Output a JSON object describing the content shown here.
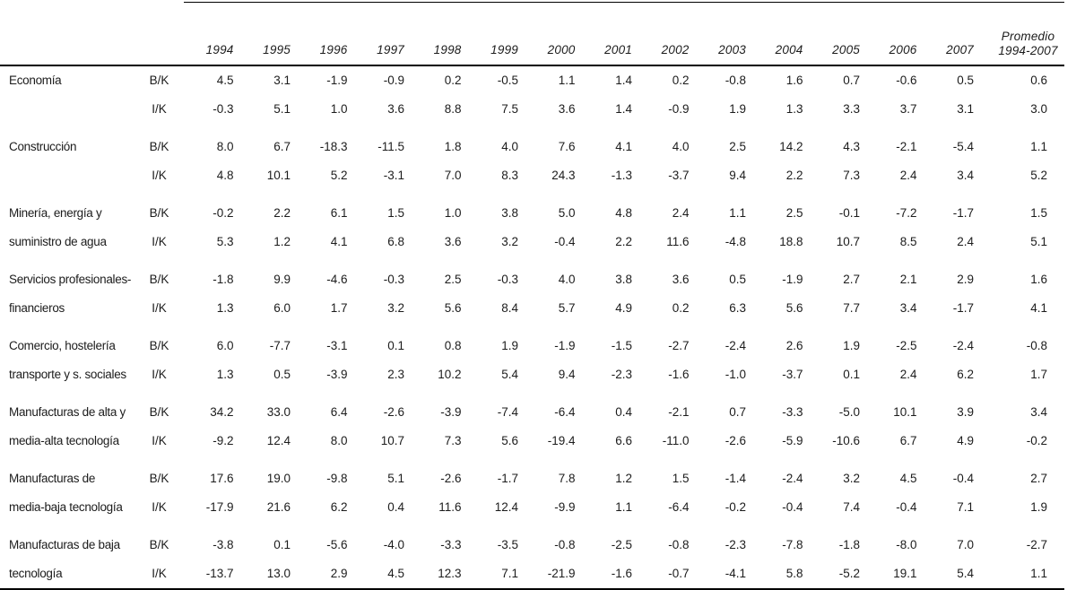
{
  "table": {
    "year_headers": [
      "1994",
      "1995",
      "1996",
      "1997",
      "1998",
      "1999",
      "2000",
      "2001",
      "2002",
      "2003",
      "2004",
      "2005",
      "2006",
      "2007"
    ],
    "promedio_header": "Promedio\n1994-2007",
    "groups": [
      {
        "sector": "Economía",
        "rows": [
          {
            "label": "B/K",
            "values": [
              "4.5",
              "3.1",
              "-1.9",
              "-0.9",
              "0.2",
              "-0.5",
              "1.1",
              "1.4",
              "0.2",
              "-0.8",
              "1.6",
              "0.7",
              "-0.6",
              "0.5",
              "0.6"
            ]
          },
          {
            "label": "I/K",
            "values": [
              "-0.3",
              "5.1",
              "1.0",
              "3.6",
              "8.8",
              "7.5",
              "3.6",
              "1.4",
              "-0.9",
              "1.9",
              "1.3",
              "3.3",
              "3.7",
              "3.1",
              "3.0"
            ]
          }
        ]
      },
      {
        "sector": "Construcción",
        "rows": [
          {
            "label": "B/K",
            "values": [
              "8.0",
              "6.7",
              "-18.3",
              "-11.5",
              "1.8",
              "4.0",
              "7.6",
              "4.1",
              "4.0",
              "2.5",
              "14.2",
              "4.3",
              "-2.1",
              "-5.4",
              "1.1"
            ]
          },
          {
            "label": "I/K",
            "values": [
              "4.8",
              "10.1",
              "5.2",
              "-3.1",
              "7.0",
              "8.3",
              "24.3",
              "-1.3",
              "-3.7",
              "9.4",
              "2.2",
              "7.3",
              "2.4",
              "3.4",
              "5.2"
            ]
          }
        ]
      },
      {
        "sector": "Minería, energía y\nsuministro de agua",
        "rows": [
          {
            "label": "B/K",
            "values": [
              "-0.2",
              "2.2",
              "6.1",
              "1.5",
              "1.0",
              "3.8",
              "5.0",
              "4.8",
              "2.4",
              "1.1",
              "2.5",
              "-0.1",
              "-7.2",
              "-1.7",
              "1.5"
            ]
          },
          {
            "label": "I/K",
            "values": [
              "5.3",
              "1.2",
              "4.1",
              "6.8",
              "3.6",
              "3.2",
              "-0.4",
              "2.2",
              "11.6",
              "-4.8",
              "18.8",
              "10.7",
              "8.5",
              "2.4",
              "5.1"
            ]
          }
        ]
      },
      {
        "sector": "Servicios profesionales-\nfinancieros",
        "rows": [
          {
            "label": "B/K",
            "values": [
              "-1.8",
              "9.9",
              "-4.6",
              "-0.3",
              "2.5",
              "-0.3",
              "4.0",
              "3.8",
              "3.6",
              "0.5",
              "-1.9",
              "2.7",
              "2.1",
              "2.9",
              "1.6"
            ]
          },
          {
            "label": "I/K",
            "values": [
              "1.3",
              "6.0",
              "1.7",
              "3.2",
              "5.6",
              "8.4",
              "5.7",
              "4.9",
              "0.2",
              "6.3",
              "5.6",
              "7.7",
              "3.4",
              "-1.7",
              "4.1"
            ]
          }
        ]
      },
      {
        "sector": "Comercio, hostelería\ntransporte y s. sociales",
        "rows": [
          {
            "label": "B/K",
            "values": [
              "6.0",
              "-7.7",
              "-3.1",
              "0.1",
              "0.8",
              "1.9",
              "-1.9",
              "-1.5",
              "-2.7",
              "-2.4",
              "2.6",
              "1.9",
              "-2.5",
              "-2.4",
              "-0.8"
            ]
          },
          {
            "label": "I/K",
            "values": [
              "1.3",
              "0.5",
              "-3.9",
              "2.3",
              "10.2",
              "5.4",
              "9.4",
              "-2.3",
              "-1.6",
              "-1.0",
              "-3.7",
              "0.1",
              "2.4",
              "6.2",
              "1.7"
            ]
          }
        ]
      },
      {
        "sector": "Manufacturas de alta y\nmedia-alta tecnología",
        "rows": [
          {
            "label": "B/K",
            "values": [
              "34.2",
              "33.0",
              "6.4",
              "-2.6",
              "-3.9",
              "-7.4",
              "-6.4",
              "0.4",
              "-2.1",
              "0.7",
              "-3.3",
              "-5.0",
              "10.1",
              "3.9",
              "3.4"
            ]
          },
          {
            "label": "I/K",
            "values": [
              "-9.2",
              "12.4",
              "8.0",
              "10.7",
              "7.3",
              "5.6",
              "-19.4",
              "6.6",
              "-11.0",
              "-2.6",
              "-5.9",
              "-10.6",
              "6.7",
              "4.9",
              "-0.2"
            ]
          }
        ]
      },
      {
        "sector": "Manufacturas de\nmedia-baja tecnología",
        "rows": [
          {
            "label": "B/K",
            "values": [
              "17.6",
              "19.0",
              "-9.8",
              "5.1",
              "-2.6",
              "-1.7",
              "7.8",
              "1.2",
              "1.5",
              "-1.4",
              "-2.4",
              "3.2",
              "4.5",
              "-0.4",
              "2.7"
            ]
          },
          {
            "label": "I/K",
            "values": [
              "-17.9",
              "21.6",
              "6.2",
              "0.4",
              "11.6",
              "12.4",
              "-9.9",
              "1.1",
              "-6.4",
              "-0.2",
              "-0.4",
              "7.4",
              "-0.4",
              "7.1",
              "1.9"
            ]
          }
        ]
      },
      {
        "sector": "Manufacturas de baja\ntecnología",
        "rows": [
          {
            "label": "B/K",
            "values": [
              "-3.8",
              "0.1",
              "-5.6",
              "-4.0",
              "-3.3",
              "-3.5",
              "-0.8",
              "-2.5",
              "-0.8",
              "-2.3",
              "-7.8",
              "-1.8",
              "-8.0",
              "7.0",
              "-2.7"
            ]
          },
          {
            "label": "I/K",
            "values": [
              "-13.7",
              "13.0",
              "2.9",
              "4.5",
              "12.3",
              "7.1",
              "-21.9",
              "-1.6",
              "-0.7",
              "-4.1",
              "5.8",
              "-5.2",
              "19.1",
              "5.4",
              "1.1"
            ]
          }
        ]
      }
    ]
  }
}
